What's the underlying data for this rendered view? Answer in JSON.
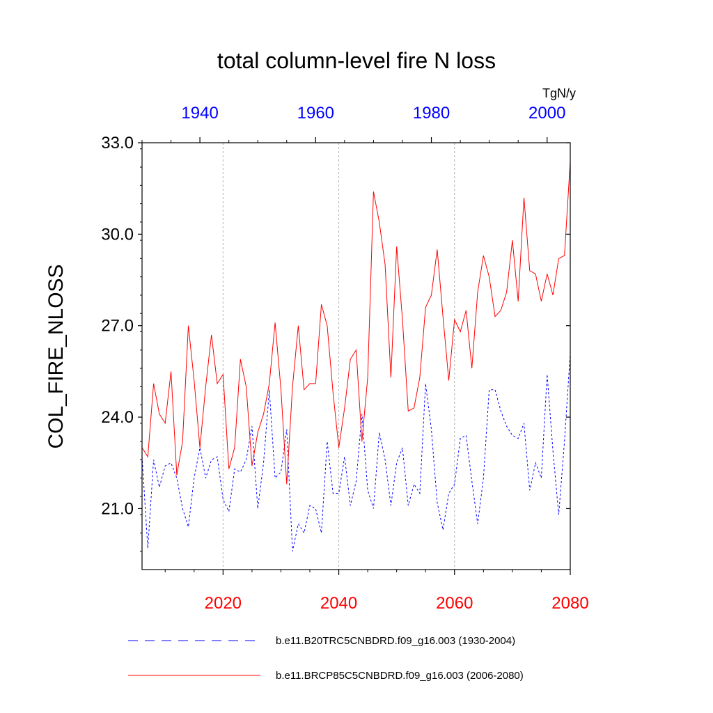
{
  "chart_data": {
    "type": "line",
    "title": "total column-level fire N loss",
    "units": "TgN/y",
    "ylabel": "COL_FIRE_NLOSS",
    "ylim": [
      19.0,
      33.0
    ],
    "yticks": [
      21.0,
      24.0,
      27.0,
      30.0,
      33.0
    ],
    "ytick_labels": [
      "21.0",
      "24.0",
      "27.0",
      "30.0",
      "33.0"
    ],
    "x_bottom": {
      "range": [
        2006,
        2080
      ],
      "ticks": [
        2020,
        2040,
        2060,
        2080
      ],
      "tick_labels": [
        "2020",
        "2040",
        "2060",
        "2080"
      ],
      "color": "#ff0000"
    },
    "x_top": {
      "range": [
        1930,
        2004
      ],
      "ticks": [
        1940,
        1960,
        1980,
        2000
      ],
      "tick_labels": [
        "1940",
        "1960",
        "1980",
        "2000"
      ],
      "color": "#0000ff"
    },
    "gridlines_at_bottom_years": [
      2020,
      2040,
      2060
    ],
    "series": [
      {
        "name": "b.e11.B20TRC5CNBDRD.f09_g16.003 (1930-2004)",
        "axis": "top",
        "color": "#0000ff",
        "style": "dashed",
        "start_year": 1930,
        "values": [
          22.7,
          19.7,
          22.6,
          21.7,
          22.4,
          22.5,
          22.0,
          21.0,
          20.4,
          22.0,
          23.0,
          22.0,
          22.6,
          22.7,
          21.3,
          20.9,
          22.3,
          22.2,
          22.6,
          23.7,
          21.0,
          22.5,
          24.9,
          22.0,
          22.2,
          23.6,
          19.6,
          20.5,
          20.2,
          21.1,
          21.0,
          20.2,
          23.2,
          21.5,
          21.5,
          22.7,
          21.1,
          21.9,
          24.1,
          21.6,
          21.0,
          23.5,
          22.6,
          21.1,
          22.5,
          23.0,
          21.1,
          21.8,
          21.5,
          25.1,
          23.6,
          21.2,
          20.3,
          21.5,
          21.8,
          23.3,
          23.4,
          21.9,
          20.5,
          22.0,
          24.9,
          24.9,
          24.2,
          23.7,
          23.4,
          23.3,
          23.8,
          21.6,
          22.5,
          22.0,
          25.4,
          22.9,
          20.8,
          23.2,
          26.1
        ]
      },
      {
        "name": "b.e11.BRCP85C5CNBDRD.f09_g16.003 (2006-2080)",
        "axis": "bottom",
        "color": "#ff0000",
        "style": "solid",
        "start_year": 2006,
        "values": [
          23.0,
          22.7,
          25.1,
          24.1,
          23.8,
          25.5,
          22.1,
          23.2,
          27.0,
          25.2,
          23.0,
          25.0,
          26.7,
          25.1,
          25.4,
          22.3,
          23.0,
          25.9,
          25.0,
          22.4,
          23.5,
          24.1,
          25.1,
          27.1,
          24.9,
          21.8,
          25.0,
          27.0,
          24.9,
          25.1,
          25.1,
          27.7,
          27.0,
          24.8,
          23.0,
          24.3,
          25.9,
          26.2,
          23.2,
          25.3,
          31.4,
          30.4,
          29.0,
          25.3,
          29.6,
          27.2,
          24.2,
          24.3,
          25.3,
          27.6,
          28.0,
          29.5,
          27.3,
          25.2,
          27.2,
          26.8,
          27.5,
          25.6,
          28.1,
          29.3,
          28.6,
          27.3,
          27.5,
          28.1,
          29.8,
          27.8,
          31.2,
          28.8,
          28.7,
          27.8,
          28.7,
          28.0,
          29.2,
          29.3,
          32.4
        ]
      }
    ]
  }
}
